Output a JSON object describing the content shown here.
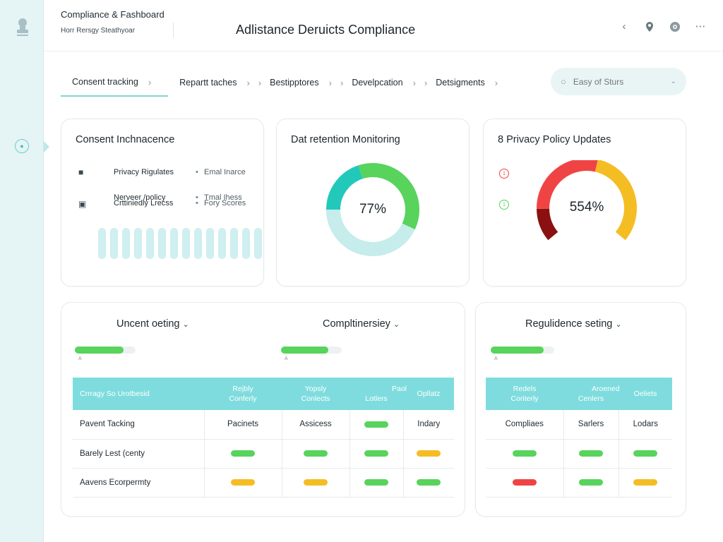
{
  "app": {
    "title": "Compliance & Fashboard",
    "subtitle": "Horr Rersgy Steathyoar",
    "page_title": "Adlistance Deruicts Compliance"
  },
  "header_icons": [
    "chevron-left-icon",
    "location-pin-icon",
    "settings-icon",
    "more-icon"
  ],
  "breadcrumbs": [
    {
      "label": "Consent tracking",
      "active": true
    },
    {
      "label": "Repartt taches",
      "active": false
    },
    {
      "label": "Bestipptores",
      "active": false
    },
    {
      "label": "Develpcation",
      "active": false
    },
    {
      "label": "Detsigments",
      "active": false
    }
  ],
  "search": {
    "placeholder": "Easy of Sturs"
  },
  "cards": {
    "consent": {
      "title": "Consent Inchnacence",
      "rows": [
        {
          "label": "Privacy Rigulates",
          "value": "Emal Inarce"
        },
        {
          "label": "Nerveer /policy",
          "value": "Tmal Ihess"
        },
        {
          "label": "Crttiniedly Lrecss",
          "value": "Fory Scores"
        }
      ],
      "stripe_count": 14
    },
    "retention": {
      "title": "Dat retention Monitoring",
      "value_label": "77%"
    },
    "privacy": {
      "title": "8 Privacy Policy Updates",
      "value_label": "554%",
      "badge_red": "1",
      "badge_green": "1"
    }
  },
  "colors": {
    "accent": "#7fdcde",
    "green": "#58d35c",
    "yellow": "#f5bd24",
    "red": "#f04444",
    "teal": "#22c9bb",
    "dark_red": "#8b1010"
  },
  "chart_data": [
    {
      "type": "pie",
      "title": "Dat retention Monitoring",
      "center_label": "77%",
      "segments": [
        {
          "name": "teal",
          "value": 20
        },
        {
          "name": "green",
          "value": 37
        },
        {
          "name": "light",
          "value": 43
        }
      ]
    },
    {
      "type": "pie",
      "title": "8 Privacy Policy Updates",
      "center_label": "554%",
      "segments": [
        {
          "name": "dark-red",
          "value": 15
        },
        {
          "name": "red",
          "value": 40
        },
        {
          "name": "amber",
          "value": 45
        }
      ]
    }
  ],
  "sections": {
    "left": {
      "title1": "Uncent oeting",
      "bar1_fill": 0.8,
      "title2": "Compltinersiey",
      "bar2_fill": 0.78,
      "caption": "A",
      "headers": [
        {
          "top": "Crrragy So Urotbesid",
          "bottom": ""
        },
        {
          "top": "Rejbly",
          "bottom": "Conferly"
        },
        {
          "top": "Yopsly",
          "bottom": "Conlects"
        },
        {
          "top": "Paol",
          "bottom": "Lotlers"
        },
        {
          "top": "",
          "bottom": "Opllatz"
        }
      ],
      "rows": [
        {
          "name": "Pavent Tacking",
          "cells": [
            "Pacinets",
            "Assicess",
            "g",
            "Indary"
          ]
        },
        {
          "name": "Barely Lest (centy",
          "cells": [
            "g",
            "g",
            "g",
            "y"
          ]
        },
        {
          "name": "Aavens Ecorpermty",
          "cells": [
            "y",
            "y",
            "g",
            "g"
          ]
        }
      ]
    },
    "right": {
      "title": "Regulidence seting",
      "bar_fill": 0.83,
      "caption": "A",
      "headers": [
        {
          "top": "Redels",
          "bottom": "Coriterly"
        },
        {
          "top": "Aroened",
          "bottom": "Cenlers"
        },
        {
          "top": "",
          "bottom": "Oeliets"
        }
      ],
      "rows": [
        {
          "cells": [
            "Compliaes",
            "Sarlers",
            "Lodars"
          ]
        },
        {
          "cells": [
            "g",
            "g",
            "g"
          ]
        },
        {
          "cells": [
            "r",
            "g",
            "y"
          ]
        }
      ]
    }
  }
}
